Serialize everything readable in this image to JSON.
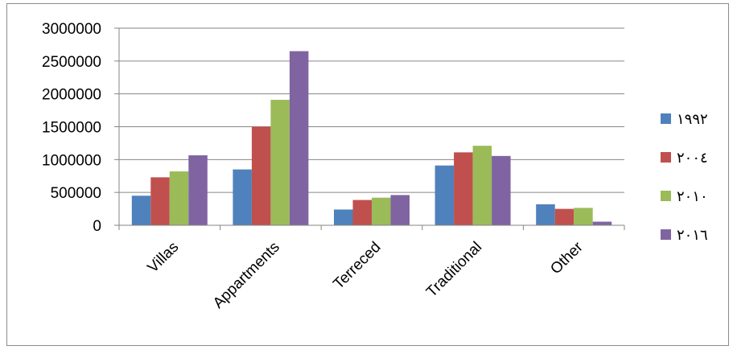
{
  "chart_data": {
    "type": "bar",
    "categories": [
      "Villas",
      "Appartments",
      "Terreced",
      "Traditional",
      "Other"
    ],
    "series": [
      {
        "name": "١٩٩٢",
        "color": "#4F81BD",
        "values": [
          450000,
          850000,
          240000,
          910000,
          320000
        ]
      },
      {
        "name": "٢٠٠٤",
        "color": "#C0504D",
        "values": [
          730000,
          1500000,
          385000,
          1110000,
          250000
        ]
      },
      {
        "name": "٢٠١٠",
        "color": "#9BBB59",
        "values": [
          820000,
          1910000,
          420000,
          1210000,
          265000
        ]
      },
      {
        "name": "٢٠١٦",
        "color": "#8064A2",
        "values": [
          1065000,
          2650000,
          460000,
          1055000,
          55000
        ]
      }
    ],
    "ylim": [
      0,
      3000000
    ],
    "yticks": [
      "0",
      "500000",
      "1000000",
      "1500000",
      "2000000",
      "2500000",
      "3000000"
    ],
    "grid": true,
    "legend_position": "right",
    "title": "",
    "xlabel": "",
    "ylabel": ""
  }
}
